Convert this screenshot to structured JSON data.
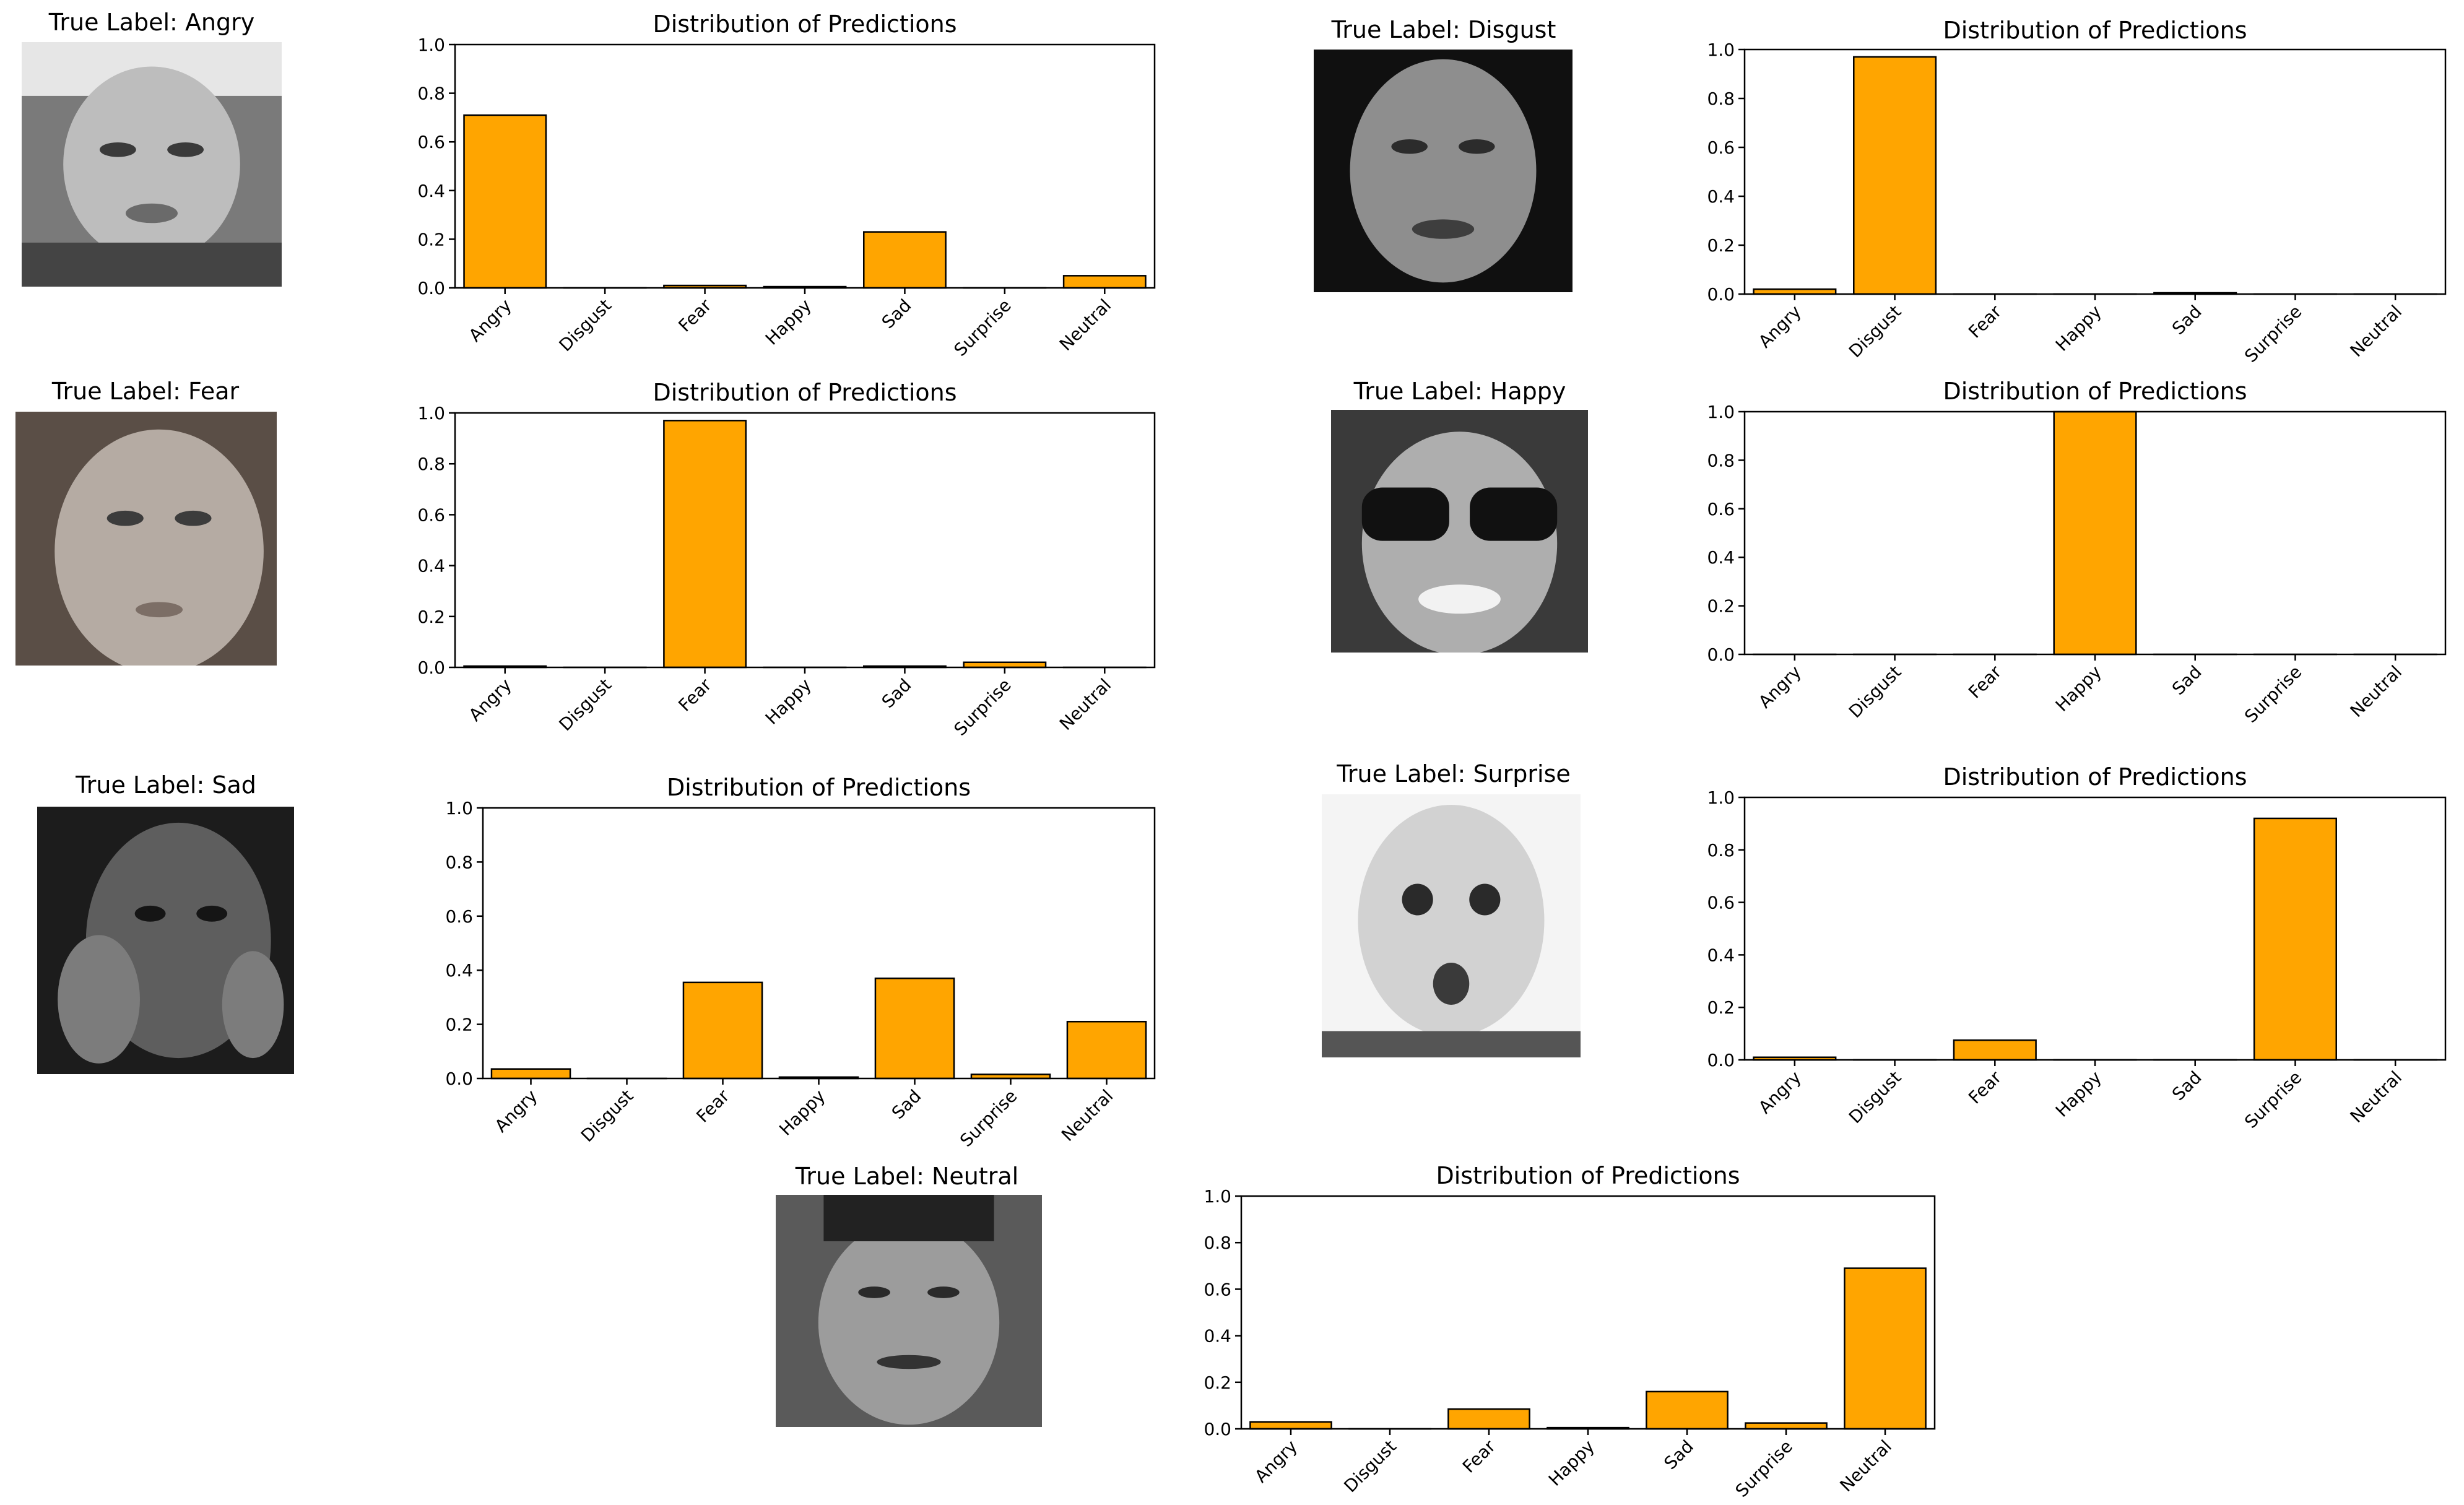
{
  "colors": {
    "bar": "#FFA500",
    "edge": "#000000",
    "axes": "#000000"
  },
  "panels": [
    {
      "true_label": "True Label: Angry",
      "chart_data": {
        "type": "bar",
        "title": "Distribution of Predictions",
        "categories": [
          "Angry",
          "Disgust",
          "Fear",
          "Happy",
          "Sad",
          "Surprise",
          "Neutral"
        ],
        "values": [
          0.71,
          0.0,
          0.01,
          0.005,
          0.23,
          0.0,
          0.05
        ],
        "ylim": [
          0,
          1.0
        ],
        "yticks": [
          "0.0",
          "0.2",
          "0.4",
          "0.6",
          "0.8",
          "1.0"
        ],
        "grid": false,
        "legend": "none"
      }
    },
    {
      "true_label": "True Label: Disgust",
      "chart_data": {
        "type": "bar",
        "title": "Distribution of Predictions",
        "categories": [
          "Angry",
          "Disgust",
          "Fear",
          "Happy",
          "Sad",
          "Surprise",
          "Neutral"
        ],
        "values": [
          0.02,
          0.97,
          0.0,
          0.0,
          0.005,
          0.0,
          0.0
        ],
        "ylim": [
          0,
          1.0
        ],
        "yticks": [
          "0.0",
          "0.2",
          "0.4",
          "0.6",
          "0.8",
          "1.0"
        ],
        "grid": false,
        "legend": "none"
      }
    },
    {
      "true_label": "True Label: Fear",
      "chart_data": {
        "type": "bar",
        "title": "Distribution of Predictions",
        "categories": [
          "Angry",
          "Disgust",
          "Fear",
          "Happy",
          "Sad",
          "Surprise",
          "Neutral"
        ],
        "values": [
          0.005,
          0.0,
          0.97,
          0.0,
          0.005,
          0.02,
          0.0
        ],
        "ylim": [
          0,
          1.0
        ],
        "yticks": [
          "0.0",
          "0.2",
          "0.4",
          "0.6",
          "0.8",
          "1.0"
        ],
        "grid": false,
        "legend": "none"
      }
    },
    {
      "true_label": "True Label: Happy",
      "chart_data": {
        "type": "bar",
        "title": "Distribution of Predictions",
        "categories": [
          "Angry",
          "Disgust",
          "Fear",
          "Happy",
          "Sad",
          "Surprise",
          "Neutral"
        ],
        "values": [
          0.0,
          0.0,
          0.0,
          1.0,
          0.0,
          0.0,
          0.0
        ],
        "ylim": [
          0,
          1.0
        ],
        "yticks": [
          "0.0",
          "0.2",
          "0.4",
          "0.6",
          "0.8",
          "1.0"
        ],
        "grid": false,
        "legend": "none"
      }
    },
    {
      "true_label": "True Label: Sad",
      "chart_data": {
        "type": "bar",
        "title": "Distribution of Predictions",
        "categories": [
          "Angry",
          "Disgust",
          "Fear",
          "Happy",
          "Sad",
          "Surprise",
          "Neutral"
        ],
        "values": [
          0.035,
          0.0,
          0.355,
          0.005,
          0.37,
          0.015,
          0.21
        ],
        "ylim": [
          0,
          1.0
        ],
        "yticks": [
          "0.0",
          "0.2",
          "0.4",
          "0.6",
          "0.8",
          "1.0"
        ],
        "grid": false,
        "legend": "none"
      }
    },
    {
      "true_label": "True Label: Surprise",
      "chart_data": {
        "type": "bar",
        "title": "Distribution of Predictions",
        "categories": [
          "Angry",
          "Disgust",
          "Fear",
          "Happy",
          "Sad",
          "Surprise",
          "Neutral"
        ],
        "values": [
          0.01,
          0.0,
          0.075,
          0.0,
          0.0,
          0.92,
          0.0
        ],
        "ylim": [
          0,
          1.0
        ],
        "yticks": [
          "0.0",
          "0.2",
          "0.4",
          "0.6",
          "0.8",
          "1.0"
        ],
        "grid": false,
        "legend": "none"
      }
    },
    {
      "true_label": "True Label: Neutral",
      "chart_data": {
        "type": "bar",
        "title": "Distribution of Predictions",
        "categories": [
          "Angry",
          "Disgust",
          "Fear",
          "Happy",
          "Sad",
          "Surprise",
          "Neutral"
        ],
        "values": [
          0.03,
          0.0,
          0.085,
          0.005,
          0.16,
          0.025,
          0.69
        ],
        "ylim": [
          0,
          1.0
        ],
        "yticks": [
          "0.0",
          "0.2",
          "0.4",
          "0.6",
          "0.8",
          "1.0"
        ],
        "grid": false,
        "legend": "none"
      }
    }
  ]
}
